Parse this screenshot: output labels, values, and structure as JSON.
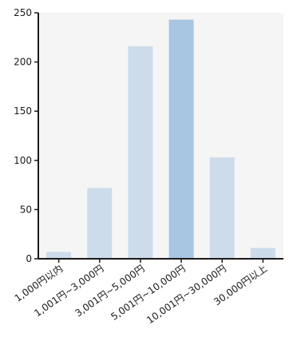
{
  "chart_data": {
    "type": "bar",
    "title": "",
    "xlabel": "",
    "ylabel": "",
    "categories": [
      "1,000円以内",
      "1,001円~3,000円",
      "3,001円~5,000円",
      "5,001円~10,000円",
      "10,001円~30,000円",
      "30,000円以上"
    ],
    "values": [
      7,
      72,
      216,
      243,
      103,
      11
    ],
    "ylim": [
      0,
      250
    ],
    "yticks": [
      0,
      50,
      100,
      150,
      200,
      250
    ],
    "grid": false,
    "legend": "none",
    "colors": {
      "bar": "#cddceb",
      "highlight_bar": "#a8c5e2",
      "plot_background": "#f5f5f5",
      "axis": "#1a1a1a"
    },
    "highlight_index": 3
  }
}
